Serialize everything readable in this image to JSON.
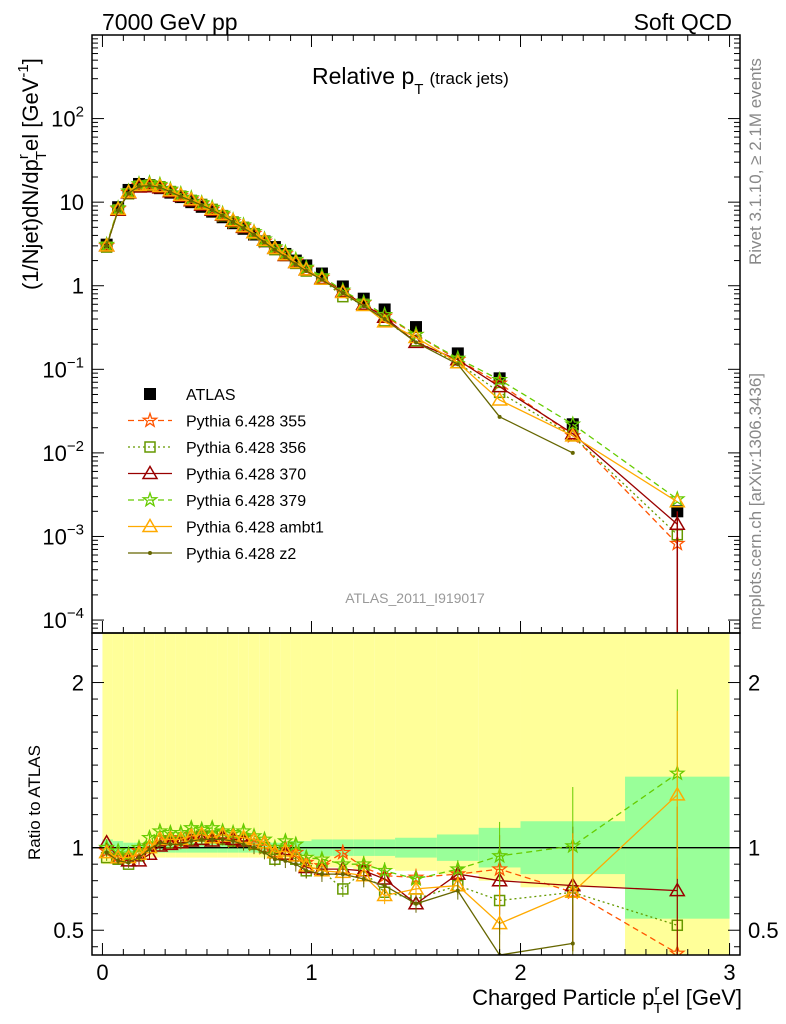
{
  "header": {
    "left": "7000 GeV pp",
    "right": "Soft QCD"
  },
  "side_text": {
    "rivet": "Rivet 3.1.10, ≥ 2.1M events",
    "mcplots": "mcplots.cern.ch [arXiv:1306.3436]"
  },
  "analysis_id": "ATLAS_2011_I919017",
  "chart_data": [
    {
      "type": "scatter",
      "title": "Relative p",
      "title_sub": "T",
      "title_suffix": "(track jets)",
      "ylabel": "(1/Njet)dN/dp",
      "ylabel_sup": "r",
      "ylabel_sub": "T",
      "ylabel_tail": "el [GeV",
      "ylabel_unit_sup": "-1",
      "ylabel_close": "]",
      "yscale": "log",
      "xlim": [
        -0.05,
        3.05
      ],
      "ylim": [
        7e-05,
        1000
      ],
      "ytick_labels": [
        "10^-4",
        "10^-3",
        "10^-2",
        "10^-1",
        "1",
        "10",
        "10^2"
      ],
      "x": [
        0.02,
        0.075,
        0.125,
        0.175,
        0.225,
        0.275,
        0.325,
        0.375,
        0.425,
        0.475,
        0.525,
        0.575,
        0.625,
        0.675,
        0.725,
        0.775,
        0.825,
        0.875,
        0.925,
        0.975,
        1.05,
        1.15,
        1.25,
        1.35,
        1.5,
        1.7,
        1.9,
        2.25,
        2.75
      ],
      "series": [
        {
          "name": "ATLAS",
          "color": "#000000",
          "marker": "square",
          "values": [
            3.1,
            8.7,
            14,
            16.5,
            16,
            14.7,
            13,
            11.5,
            10,
            8.8,
            7.7,
            6.6,
            5.6,
            4.8,
            4.1,
            3.4,
            2.9,
            2.4,
            2.0,
            1.75,
            1.4,
            0.98,
            0.7,
            0.52,
            0.32,
            0.155,
            0.078,
            0.022,
            0.002
          ]
        },
        {
          "name": "Pythia 6.428 355",
          "color": "#ff5500",
          "marker": "star",
          "dash": "6,4",
          "values": [
            3.0,
            8.3,
            13,
            15.8,
            16.2,
            15.6,
            13.8,
            12.0,
            10.8,
            9.5,
            8.2,
            7.0,
            5.8,
            5.1,
            4.2,
            3.4,
            2.8,
            2.4,
            1.95,
            1.6,
            1.25,
            0.85,
            0.62,
            0.43,
            0.26,
            0.13,
            0.068,
            0.016,
            0.00082
          ]
        },
        {
          "name": "Pythia 6.428 356",
          "color": "#669900",
          "marker": "open-square",
          "dash": "2,3",
          "values": [
            2.9,
            8.1,
            12.6,
            15.6,
            16.0,
            15.3,
            13.4,
            11.8,
            10.5,
            9.4,
            8.2,
            6.9,
            5.8,
            5.0,
            4.2,
            3.4,
            2.7,
            2.3,
            1.85,
            1.5,
            1.2,
            0.74,
            0.6,
            0.38,
            0.22,
            0.12,
            0.053,
            0.016,
            0.00105
          ]
        },
        {
          "name": "Pythia 6.428 370",
          "color": "#990000",
          "marker": "open-triangle",
          "values": [
            3.0,
            8.0,
            12.9,
            15.2,
            15.3,
            14.8,
            13.3,
            11.8,
            10.4,
            9.2,
            8.0,
            7.0,
            5.9,
            5.0,
            4.3,
            3.5,
            2.8,
            2.3,
            1.9,
            1.55,
            1.22,
            0.85,
            0.6,
            0.42,
            0.21,
            0.13,
            0.062,
            0.017,
            0.0014
          ]
        },
        {
          "name": "Pythia 6.428 379",
          "color": "#66cc00",
          "marker": "star",
          "dash": "6,4",
          "values": [
            3.1,
            8.5,
            13.5,
            16.5,
            17.0,
            16.2,
            14.2,
            12.6,
            11.2,
            9.8,
            8.6,
            7.3,
            6.1,
            5.3,
            4.4,
            3.6,
            2.9,
            2.5,
            2.05,
            1.65,
            1.3,
            0.88,
            0.63,
            0.45,
            0.26,
            0.135,
            0.075,
            0.022,
            0.0028
          ]
        },
        {
          "name": "Pythia 6.428 ambt1",
          "color": "#ffaa00",
          "marker": "open-triangle",
          "values": [
            3.0,
            8.2,
            13.1,
            15.9,
            16.1,
            15.4,
            13.7,
            12.1,
            10.7,
            9.5,
            8.2,
            7.1,
            6.0,
            5.1,
            4.3,
            3.5,
            2.8,
            2.35,
            1.9,
            1.55,
            1.2,
            0.83,
            0.58,
            0.37,
            0.24,
            0.12,
            0.043,
            0.016,
            0.0026
          ]
        },
        {
          "name": "Pythia 6.428 z2",
          "color": "#666600",
          "marker": "dot",
          "values": [
            3.0,
            8.0,
            12.8,
            15.5,
            15.8,
            15.1,
            13.3,
            11.7,
            10.4,
            9.2,
            8.1,
            6.9,
            5.8,
            4.9,
            4.1,
            3.3,
            2.7,
            2.2,
            1.8,
            1.5,
            1.18,
            0.82,
            0.57,
            0.4,
            0.21,
            0.115,
            0.027,
            0.01,
            null
          ]
        }
      ]
    },
    {
      "type": "line",
      "ylabel": "Ratio to ATLAS",
      "xlabel": "Charged Particle p",
      "xlabel_sup": "r",
      "xlabel_sub": "T",
      "xlabel_tail": "el [GeV]",
      "xlim": [
        -0.05,
        3.05
      ],
      "ylim": [
        0.35,
        2.3
      ],
      "xtick_labels": [
        "0",
        "1",
        "2",
        "3"
      ],
      "ytick_labels": [
        "0.5",
        "1",
        "2"
      ],
      "x": [
        0.02,
        0.075,
        0.125,
        0.175,
        0.225,
        0.275,
        0.325,
        0.375,
        0.425,
        0.475,
        0.525,
        0.575,
        0.625,
        0.675,
        0.725,
        0.775,
        0.825,
        0.875,
        0.925,
        0.975,
        1.05,
        1.15,
        1.25,
        1.35,
        1.5,
        1.7,
        1.9,
        2.25,
        2.75
      ],
      "band_edges": [
        0,
        0.05,
        0.1,
        0.15,
        0.2,
        0.25,
        0.3,
        0.35,
        0.4,
        0.45,
        0.5,
        0.55,
        0.6,
        0.65,
        0.7,
        0.75,
        0.8,
        0.85,
        0.9,
        0.95,
        1.0,
        1.1,
        1.2,
        1.3,
        1.4,
        1.6,
        1.8,
        2.0,
        2.5,
        3.0
      ],
      "stat_band": [
        0.05,
        0.04,
        0.03,
        0.03,
        0.03,
        0.03,
        0.03,
        0.03,
        0.03,
        0.03,
        0.03,
        0.03,
        0.03,
        0.03,
        0.03,
        0.03,
        0.03,
        0.03,
        0.04,
        0.04,
        0.05,
        0.05,
        0.05,
        0.05,
        0.06,
        0.08,
        0.12,
        0.16,
        0.43
      ],
      "total_band": [
        0.1,
        0.08,
        0.07,
        0.06,
        0.06,
        0.06,
        0.06,
        0.06,
        0.06,
        0.06,
        0.06,
        0.06,
        0.06,
        0.06,
        0.06,
        0.06,
        0.07,
        0.07,
        0.08,
        0.09,
        0.12,
        0.12,
        0.13,
        0.13,
        0.14,
        0.16,
        0.2,
        0.24,
        0.77
      ],
      "series": [
        {
          "name": "Pythia 6.428 355",
          "color": "#ff5500",
          "marker": "star",
          "dash": "6,4",
          "values": [
            0.98,
            0.95,
            0.95,
            0.98,
            1.01,
            1.06,
            1.06,
            1.04,
            1.08,
            1.08,
            1.06,
            1.06,
            1.04,
            1.06,
            1.02,
            1.0,
            0.97,
            1.0,
            0.97,
            0.91,
            0.89,
            0.97,
            0.88,
            0.83,
            0.82,
            0.84,
            0.87,
            0.73,
            0.36
          ]
        },
        {
          "name": "Pythia 6.428 356",
          "color": "#669900",
          "marker": "open-square",
          "dash": "2,3",
          "values": [
            0.94,
            0.93,
            0.9,
            0.95,
            1.0,
            1.04,
            1.03,
            1.03,
            1.05,
            1.07,
            1.07,
            1.05,
            1.04,
            1.04,
            1.02,
            1.0,
            0.93,
            0.96,
            0.93,
            0.86,
            0.86,
            0.75,
            0.86,
            0.73,
            0.69,
            0.77,
            0.68,
            0.73,
            0.53
          ]
        },
        {
          "name": "Pythia 6.428 370",
          "color": "#990000",
          "marker": "open-triangle",
          "values": [
            1.03,
            0.94,
            0.92,
            0.92,
            0.96,
            1.01,
            1.02,
            1.03,
            1.04,
            1.05,
            1.04,
            1.06,
            1.05,
            1.04,
            1.05,
            1.03,
            0.97,
            0.96,
            0.95,
            0.88,
            0.87,
            0.87,
            0.86,
            0.81,
            0.66,
            0.84,
            0.8,
            0.77,
            0.74
          ]
        },
        {
          "name": "Pythia 6.428 379",
          "color": "#66cc00",
          "marker": "star",
          "dash": "6,4",
          "values": [
            1.0,
            0.98,
            0.96,
            1.0,
            1.06,
            1.1,
            1.09,
            1.09,
            1.12,
            1.11,
            1.12,
            1.1,
            1.09,
            1.1,
            1.07,
            1.05,
            1.0,
            1.04,
            1.02,
            0.94,
            0.93,
            0.9,
            0.9,
            0.86,
            0.81,
            0.87,
            0.95,
            1.01,
            1.45
          ]
        },
        {
          "name": "Pythia 6.428 ambt1",
          "color": "#ffaa00",
          "marker": "open-triangle",
          "values": [
            0.97,
            0.94,
            0.94,
            0.96,
            1.0,
            1.05,
            1.05,
            1.05,
            1.07,
            1.08,
            1.06,
            1.08,
            1.07,
            1.06,
            1.05,
            1.03,
            0.97,
            0.98,
            0.95,
            0.89,
            0.86,
            0.85,
            0.83,
            0.71,
            0.75,
            0.77,
            0.54,
            0.73,
            1.32
          ]
        },
        {
          "name": "Pythia 6.428 z2",
          "color": "#666600",
          "marker": "dot",
          "values": [
            0.97,
            0.92,
            0.91,
            0.94,
            0.99,
            1.03,
            1.02,
            1.02,
            1.04,
            1.05,
            1.05,
            1.05,
            1.04,
            1.02,
            1.0,
            0.97,
            0.93,
            0.92,
            0.9,
            0.86,
            0.84,
            0.84,
            0.81,
            0.77,
            0.66,
            0.74,
            0.35,
            0.42,
            null
          ]
        }
      ]
    }
  ]
}
